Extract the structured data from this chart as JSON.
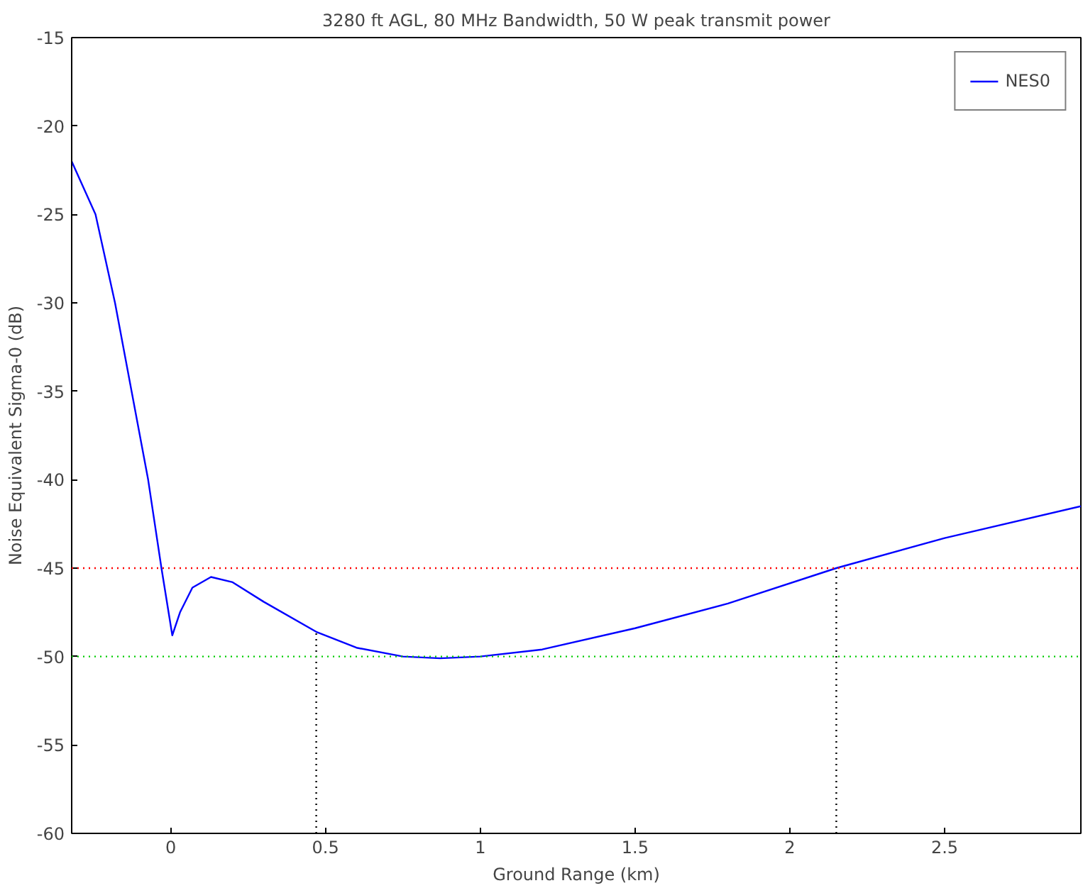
{
  "chart_data": {
    "type": "line",
    "title": "3280 ft AGL, 80 MHz Bandwidth, 50 W peak transmit power",
    "xlabel": "Ground Range (km)",
    "ylabel": "Noise Equivalent Sigma-0 (dB)",
    "xlim": [
      -0.32,
      2.94
    ],
    "ylim": [
      -60,
      -15
    ],
    "xticks": [
      0,
      0.5,
      1,
      1.5,
      2,
      2.5
    ],
    "yticks": [
      -60,
      -55,
      -50,
      -45,
      -40,
      -35,
      -30,
      -25,
      -20,
      -15
    ],
    "grid": false,
    "legend": "top right",
    "line_style": "solid",
    "marker": "none",
    "series": [
      {
        "name": "NES0",
        "color": "#0000ff",
        "x": [
          -0.32,
          -0.243,
          -0.18,
          -0.073,
          -0.03,
          0.005,
          0.03,
          0.07,
          0.13,
          0.2,
          0.3,
          0.47,
          0.6,
          0.75,
          0.87,
          1.0,
          1.2,
          1.5,
          1.8,
          2.15,
          2.5,
          2.94
        ],
        "values": [
          -22,
          -25,
          -30,
          -40,
          -45,
          -48.8,
          -47.5,
          -46.1,
          -45.5,
          -45.8,
          -46.9,
          -48.6,
          -49.5,
          -50,
          -50.1,
          -50,
          -49.6,
          -48.4,
          -47,
          -45,
          -43.3,
          -41.5
        ]
      },
      {
        "color": "#000000",
        "line_style": "dotted",
        "x": [
          0.47,
          0.47
        ],
        "values": [
          -60,
          -48.6
        ]
      },
      {
        "color": "#000000",
        "line_style": "dotted",
        "x": [
          2.15,
          2.15
        ],
        "values": [
          -60,
          -45
        ]
      }
    ],
    "ref_lines": [
      {
        "axis": "y",
        "value": -45,
        "color": "#ff0000",
        "line_style": "dotted"
      },
      {
        "axis": "y",
        "value": -50,
        "color": "#00cc00",
        "line_style": "dotted"
      }
    ]
  }
}
